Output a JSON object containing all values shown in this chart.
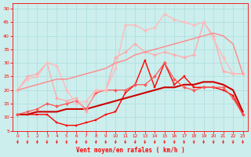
{
  "xlabel": "Vent moyen/en rafales ( km/h )",
  "x": [
    0,
    1,
    2,
    3,
    4,
    5,
    6,
    7,
    8,
    9,
    10,
    11,
    12,
    13,
    14,
    15,
    16,
    17,
    18,
    19,
    20,
    21,
    22,
    23
  ],
  "series": [
    {
      "color": "#ff0000",
      "linewidth": 1.0,
      "marker": "s",
      "markersize": 2.0,
      "values": [
        11,
        11,
        11,
        11,
        8,
        7,
        7,
        8,
        9,
        11,
        12,
        19,
        22,
        31,
        21,
        30,
        22,
        25,
        21,
        21,
        21,
        20,
        18,
        11
      ]
    },
    {
      "color": "#cc0000",
      "linewidth": 1.5,
      "marker": null,
      "markersize": 0,
      "values": [
        11,
        11,
        12,
        12,
        12,
        13,
        13,
        13,
        14,
        15,
        16,
        17,
        18,
        19,
        20,
        21,
        21,
        22,
        22,
        23,
        23,
        22,
        20,
        12
      ]
    },
    {
      "color": "#ff5555",
      "linewidth": 0.9,
      "marker": "D",
      "markersize": 2.0,
      "values": [
        11,
        12,
        13,
        15,
        14,
        15,
        16,
        13,
        19,
        20,
        20,
        20,
        22,
        22,
        25,
        30,
        24,
        21,
        20,
        21,
        21,
        21,
        17,
        11
      ]
    },
    {
      "color": "#ffaaaa",
      "linewidth": 0.9,
      "marker": "D",
      "markersize": 2.0,
      "values": [
        20,
        25,
        26,
        30,
        17,
        16,
        17,
        12,
        20,
        20,
        32,
        34,
        37,
        34,
        33,
        34,
        33,
        32,
        33,
        45,
        40,
        27,
        26,
        26
      ]
    },
    {
      "color": "#ffbbbb",
      "linewidth": 1.0,
      "marker": "D",
      "markersize": 2.0,
      "values": [
        20,
        24,
        25,
        30,
        29,
        20,
        15,
        16,
        20,
        20,
        28,
        44,
        44,
        42,
        43,
        48,
        46,
        45,
        44,
        45,
        39,
        32,
        26,
        26
      ]
    },
    {
      "color": "#ff8888",
      "linewidth": 1.0,
      "marker": null,
      "markersize": 0,
      "values": [
        20,
        21,
        22,
        23,
        24,
        24,
        25,
        26,
        27,
        28,
        30,
        31,
        33,
        34,
        35,
        36,
        37,
        38,
        39,
        40,
        41,
        40,
        37,
        26
      ]
    }
  ],
  "ylim": [
    5,
    52
  ],
  "yticks": [
    5,
    10,
    15,
    20,
    25,
    30,
    35,
    40,
    45,
    50
  ],
  "xlim": [
    -0.5,
    23.5
  ],
  "bg_color": "#cceeed",
  "grid_color": "#aadddd",
  "tick_color": "#ff0000",
  "label_color": "#ff0000"
}
